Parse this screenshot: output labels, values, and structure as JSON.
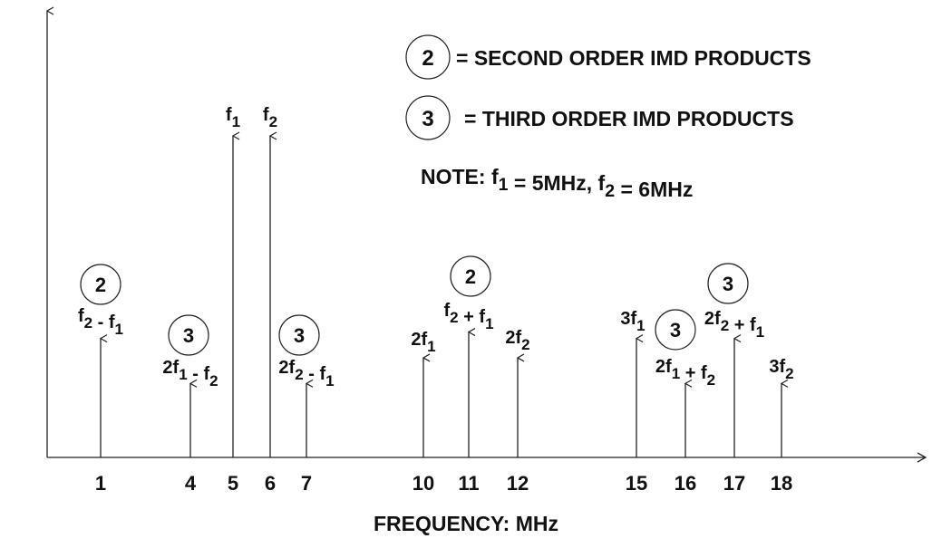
{
  "legend": {
    "second_symbol": "2",
    "second_text": "= SECOND ORDER IMD PRODUCTS",
    "third_symbol": "3",
    "third_text": "= THIRD ORDER IMD PRODUCTS"
  },
  "note": [
    [
      "NOTE:  f",
      ""
    ],
    [
      "1",
      "sub"
    ],
    [
      " = 5MHz, f",
      ""
    ],
    [
      "2",
      "sub"
    ],
    [
      " = 6MHz",
      ""
    ]
  ],
  "chart_data": {
    "type": "stem",
    "xlabel": "FREQUENCY: MHz",
    "x_ticks": [
      1,
      4,
      5,
      6,
      7,
      10,
      11,
      12,
      15,
      16,
      17,
      18
    ],
    "amplitude_units": "relative to fundamentals (unlabeled)",
    "components": [
      {
        "freq": 1,
        "amplitude": 0.37,
        "order": 2,
        "label": [
          [
            "f",
            ""
          ],
          [
            "2",
            "sub"
          ],
          [
            " - f",
            ""
          ],
          [
            "1",
            "sub"
          ]
        ]
      },
      {
        "freq": 4,
        "amplitude": 0.23,
        "order": 3,
        "label": [
          [
            "2f",
            ""
          ],
          [
            "1",
            "sub"
          ],
          [
            " - f",
            ""
          ],
          [
            "2",
            "sub"
          ]
        ]
      },
      {
        "freq": 5,
        "amplitude": 1.0,
        "order": null,
        "label": [
          [
            "f",
            ""
          ],
          [
            "1",
            "sub"
          ]
        ]
      },
      {
        "freq": 6,
        "amplitude": 1.0,
        "order": null,
        "label": [
          [
            "f",
            ""
          ],
          [
            "2",
            "sub"
          ]
        ]
      },
      {
        "freq": 7,
        "amplitude": 0.23,
        "order": 3,
        "label": [
          [
            "2f",
            ""
          ],
          [
            "2",
            "sub"
          ],
          [
            " - f",
            ""
          ],
          [
            "1",
            "sub"
          ]
        ]
      },
      {
        "freq": 10,
        "amplitude": 0.31,
        "order": null,
        "label": [
          [
            "2f",
            ""
          ],
          [
            "1",
            "sub"
          ]
        ]
      },
      {
        "freq": 11,
        "amplitude": 0.39,
        "order": 2,
        "label": [
          [
            "f",
            ""
          ],
          [
            "2",
            "sub"
          ],
          [
            " + f",
            ""
          ],
          [
            "1",
            "sub"
          ]
        ]
      },
      {
        "freq": 12,
        "amplitude": 0.31,
        "order": null,
        "label": [
          [
            "2f",
            ""
          ],
          [
            "2",
            "sub"
          ]
        ]
      },
      {
        "freq": 15,
        "amplitude": 0.37,
        "order": null,
        "label": [
          [
            "3f",
            ""
          ],
          [
            "1",
            "sub"
          ]
        ]
      },
      {
        "freq": 16,
        "amplitude": 0.23,
        "order": 3,
        "label": [
          [
            "2f",
            ""
          ],
          [
            "1",
            "sub"
          ],
          [
            " + f",
            ""
          ],
          [
            "2",
            "sub"
          ]
        ]
      },
      {
        "freq": 17,
        "amplitude": 0.37,
        "order": 3,
        "label": [
          [
            "2f",
            ""
          ],
          [
            "2",
            "sub"
          ],
          [
            " + f",
            ""
          ],
          [
            "1",
            "sub"
          ]
        ]
      },
      {
        "freq": 18,
        "amplitude": 0.23,
        "order": null,
        "label": [
          [
            "3f",
            ""
          ],
          [
            "2",
            "sub"
          ]
        ]
      }
    ]
  }
}
